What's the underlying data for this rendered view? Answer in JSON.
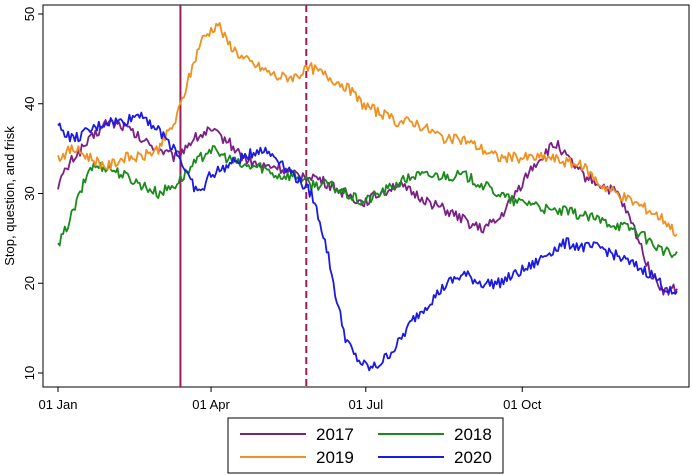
{
  "chart_data": {
    "type": "line",
    "ylabel": "Stop, question, and frisk",
    "xlabel": "",
    "x_unit": "day of year",
    "xlim": [
      1,
      365
    ],
    "ylim": [
      10,
      50
    ],
    "x_ticks": [
      {
        "day": 1,
        "label": "01 Jan"
      },
      {
        "day": 91,
        "label": "01 Apr"
      },
      {
        "day": 182,
        "label": "01 Jul"
      },
      {
        "day": 274,
        "label": "01 Oct"
      }
    ],
    "y_ticks": [
      10,
      20,
      30,
      40,
      50
    ],
    "grid": false,
    "vlines": [
      {
        "day": 73,
        "style": "solid",
        "color": "#9c1c5a"
      },
      {
        "day": 147,
        "style": "dashed",
        "color": "#9c1c5a"
      }
    ],
    "legend": {
      "position": "bottom-center",
      "columns": 2,
      "entries": [
        "2017",
        "2018",
        "2019",
        "2020"
      ]
    },
    "series": [
      {
        "name": "2017",
        "color": "#7b1f86",
        "points": [
          [
            1,
            31
          ],
          [
            10,
            34
          ],
          [
            20,
            36
          ],
          [
            30,
            38
          ],
          [
            40,
            37.5
          ],
          [
            50,
            36
          ],
          [
            60,
            35
          ],
          [
            70,
            34
          ],
          [
            80,
            36
          ],
          [
            90,
            37
          ],
          [
            100,
            36
          ],
          [
            110,
            34
          ],
          [
            120,
            33
          ],
          [
            130,
            33
          ],
          [
            140,
            32
          ],
          [
            150,
            32
          ],
          [
            160,
            31
          ],
          [
            170,
            30
          ],
          [
            180,
            29
          ],
          [
            190,
            30
          ],
          [
            200,
            31
          ],
          [
            210,
            30
          ],
          [
            220,
            29
          ],
          [
            230,
            28
          ],
          [
            240,
            27
          ],
          [
            250,
            26
          ],
          [
            260,
            27
          ],
          [
            270,
            30
          ],
          [
            280,
            33
          ],
          [
            290,
            35
          ],
          [
            295,
            35.5
          ],
          [
            300,
            34
          ],
          [
            310,
            32
          ],
          [
            320,
            31
          ],
          [
            330,
            30
          ],
          [
            340,
            26
          ],
          [
            350,
            21
          ],
          [
            358,
            19
          ],
          [
            365,
            19.5
          ]
        ]
      },
      {
        "name": "2018",
        "color": "#1a8a1a",
        "points": [
          [
            1,
            24
          ],
          [
            10,
            28
          ],
          [
            20,
            33
          ],
          [
            30,
            33
          ],
          [
            40,
            32
          ],
          [
            50,
            31
          ],
          [
            60,
            30
          ],
          [
            70,
            31
          ],
          [
            80,
            33
          ],
          [
            90,
            35
          ],
          [
            100,
            34
          ],
          [
            110,
            33
          ],
          [
            120,
            33
          ],
          [
            130,
            32
          ],
          [
            140,
            32
          ],
          [
            150,
            31
          ],
          [
            160,
            31
          ],
          [
            170,
            30
          ],
          [
            180,
            29
          ],
          [
            190,
            30
          ],
          [
            200,
            31
          ],
          [
            210,
            32
          ],
          [
            220,
            32
          ],
          [
            230,
            32
          ],
          [
            240,
            32
          ],
          [
            250,
            31
          ],
          [
            260,
            30
          ],
          [
            270,
            29
          ],
          [
            280,
            29
          ],
          [
            290,
            28
          ],
          [
            300,
            28
          ],
          [
            310,
            27.5
          ],
          [
            320,
            27
          ],
          [
            330,
            26.5
          ],
          [
            340,
            26
          ],
          [
            350,
            24.5
          ],
          [
            358,
            23.5
          ],
          [
            365,
            23
          ]
        ]
      },
      {
        "name": "2019",
        "color": "#f0901f",
        "points": [
          [
            1,
            34
          ],
          [
            10,
            35
          ],
          [
            20,
            34
          ],
          [
            30,
            33
          ],
          [
            40,
            34
          ],
          [
            50,
            34
          ],
          [
            60,
            35
          ],
          [
            70,
            38
          ],
          [
            80,
            44
          ],
          [
            85,
            47
          ],
          [
            90,
            48
          ],
          [
            95,
            49
          ],
          [
            100,
            47
          ],
          [
            110,
            45
          ],
          [
            120,
            44
          ],
          [
            130,
            43
          ],
          [
            140,
            43
          ],
          [
            150,
            44
          ],
          [
            160,
            43
          ],
          [
            170,
            42
          ],
          [
            180,
            40
          ],
          [
            190,
            39
          ],
          [
            200,
            38
          ],
          [
            210,
            38
          ],
          [
            220,
            37
          ],
          [
            230,
            36
          ],
          [
            240,
            36
          ],
          [
            250,
            35
          ],
          [
            260,
            34
          ],
          [
            270,
            34
          ],
          [
            280,
            34
          ],
          [
            290,
            34
          ],
          [
            300,
            33.5
          ],
          [
            310,
            33
          ],
          [
            320,
            31
          ],
          [
            330,
            30
          ],
          [
            340,
            29
          ],
          [
            350,
            28
          ],
          [
            358,
            27
          ],
          [
            365,
            25.5
          ]
        ]
      },
      {
        "name": "2020",
        "color": "#1a1ae0",
        "points": [
          [
            1,
            37.5
          ],
          [
            10,
            36
          ],
          [
            20,
            37
          ],
          [
            30,
            38
          ],
          [
            40,
            38
          ],
          [
            50,
            39
          ],
          [
            55,
            38
          ],
          [
            60,
            37
          ],
          [
            70,
            35
          ],
          [
            75,
            33
          ],
          [
            80,
            31
          ],
          [
            85,
            30
          ],
          [
            90,
            32
          ],
          [
            100,
            33
          ],
          [
            110,
            34
          ],
          [
            120,
            35
          ],
          [
            130,
            34
          ],
          [
            140,
            32
          ],
          [
            145,
            31
          ],
          [
            150,
            30
          ],
          [
            155,
            27
          ],
          [
            160,
            23
          ],
          [
            165,
            18
          ],
          [
            170,
            14
          ],
          [
            175,
            12
          ],
          [
            180,
            11
          ],
          [
            185,
            10.5
          ],
          [
            190,
            11
          ],
          [
            195,
            12
          ],
          [
            200,
            13
          ],
          [
            210,
            16
          ],
          [
            220,
            18
          ],
          [
            230,
            20
          ],
          [
            240,
            21
          ],
          [
            250,
            20
          ],
          [
            260,
            20
          ],
          [
            270,
            21
          ],
          [
            280,
            22
          ],
          [
            290,
            23.5
          ],
          [
            300,
            24.5
          ],
          [
            310,
            24
          ],
          [
            320,
            24
          ],
          [
            330,
            23
          ],
          [
            340,
            22
          ],
          [
            350,
            21
          ],
          [
            358,
            19.5
          ],
          [
            365,
            18.5
          ]
        ]
      }
    ]
  }
}
